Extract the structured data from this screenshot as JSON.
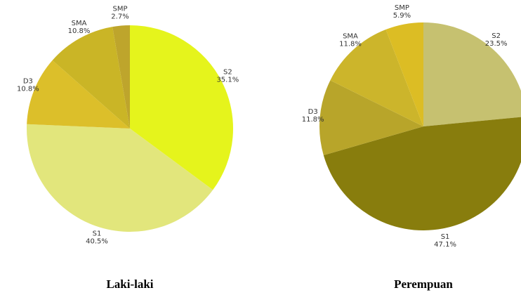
{
  "chart_data": [
    {
      "type": "pie",
      "title": "Laki-laki",
      "categories": [
        "S2",
        "S1",
        "D3",
        "SMA",
        "SMP"
      ],
      "values": [
        35.1,
        40.5,
        10.8,
        10.8,
        2.7
      ],
      "value_labels": [
        "35.1%",
        "40.5%",
        "10.8%",
        "10.8%",
        "2.7%"
      ],
      "colors": [
        "#e5f41c",
        "#e2e67c",
        "#dcbf2a",
        "#cab526",
        "#bea52c"
      ]
    },
    {
      "type": "pie",
      "title": "Perempuan",
      "categories": [
        "S2",
        "S1",
        "D3",
        "SMA",
        "SMP"
      ],
      "values": [
        23.5,
        47.1,
        11.8,
        11.8,
        5.9
      ],
      "value_labels": [
        "23.5%",
        "47.1%",
        "11.8%",
        "11.8%",
        "5.9%"
      ],
      "colors": [
        "#c6c170",
        "#887d0d",
        "#b8a52a",
        "#ccb52b",
        "#dcbd24"
      ]
    }
  ]
}
